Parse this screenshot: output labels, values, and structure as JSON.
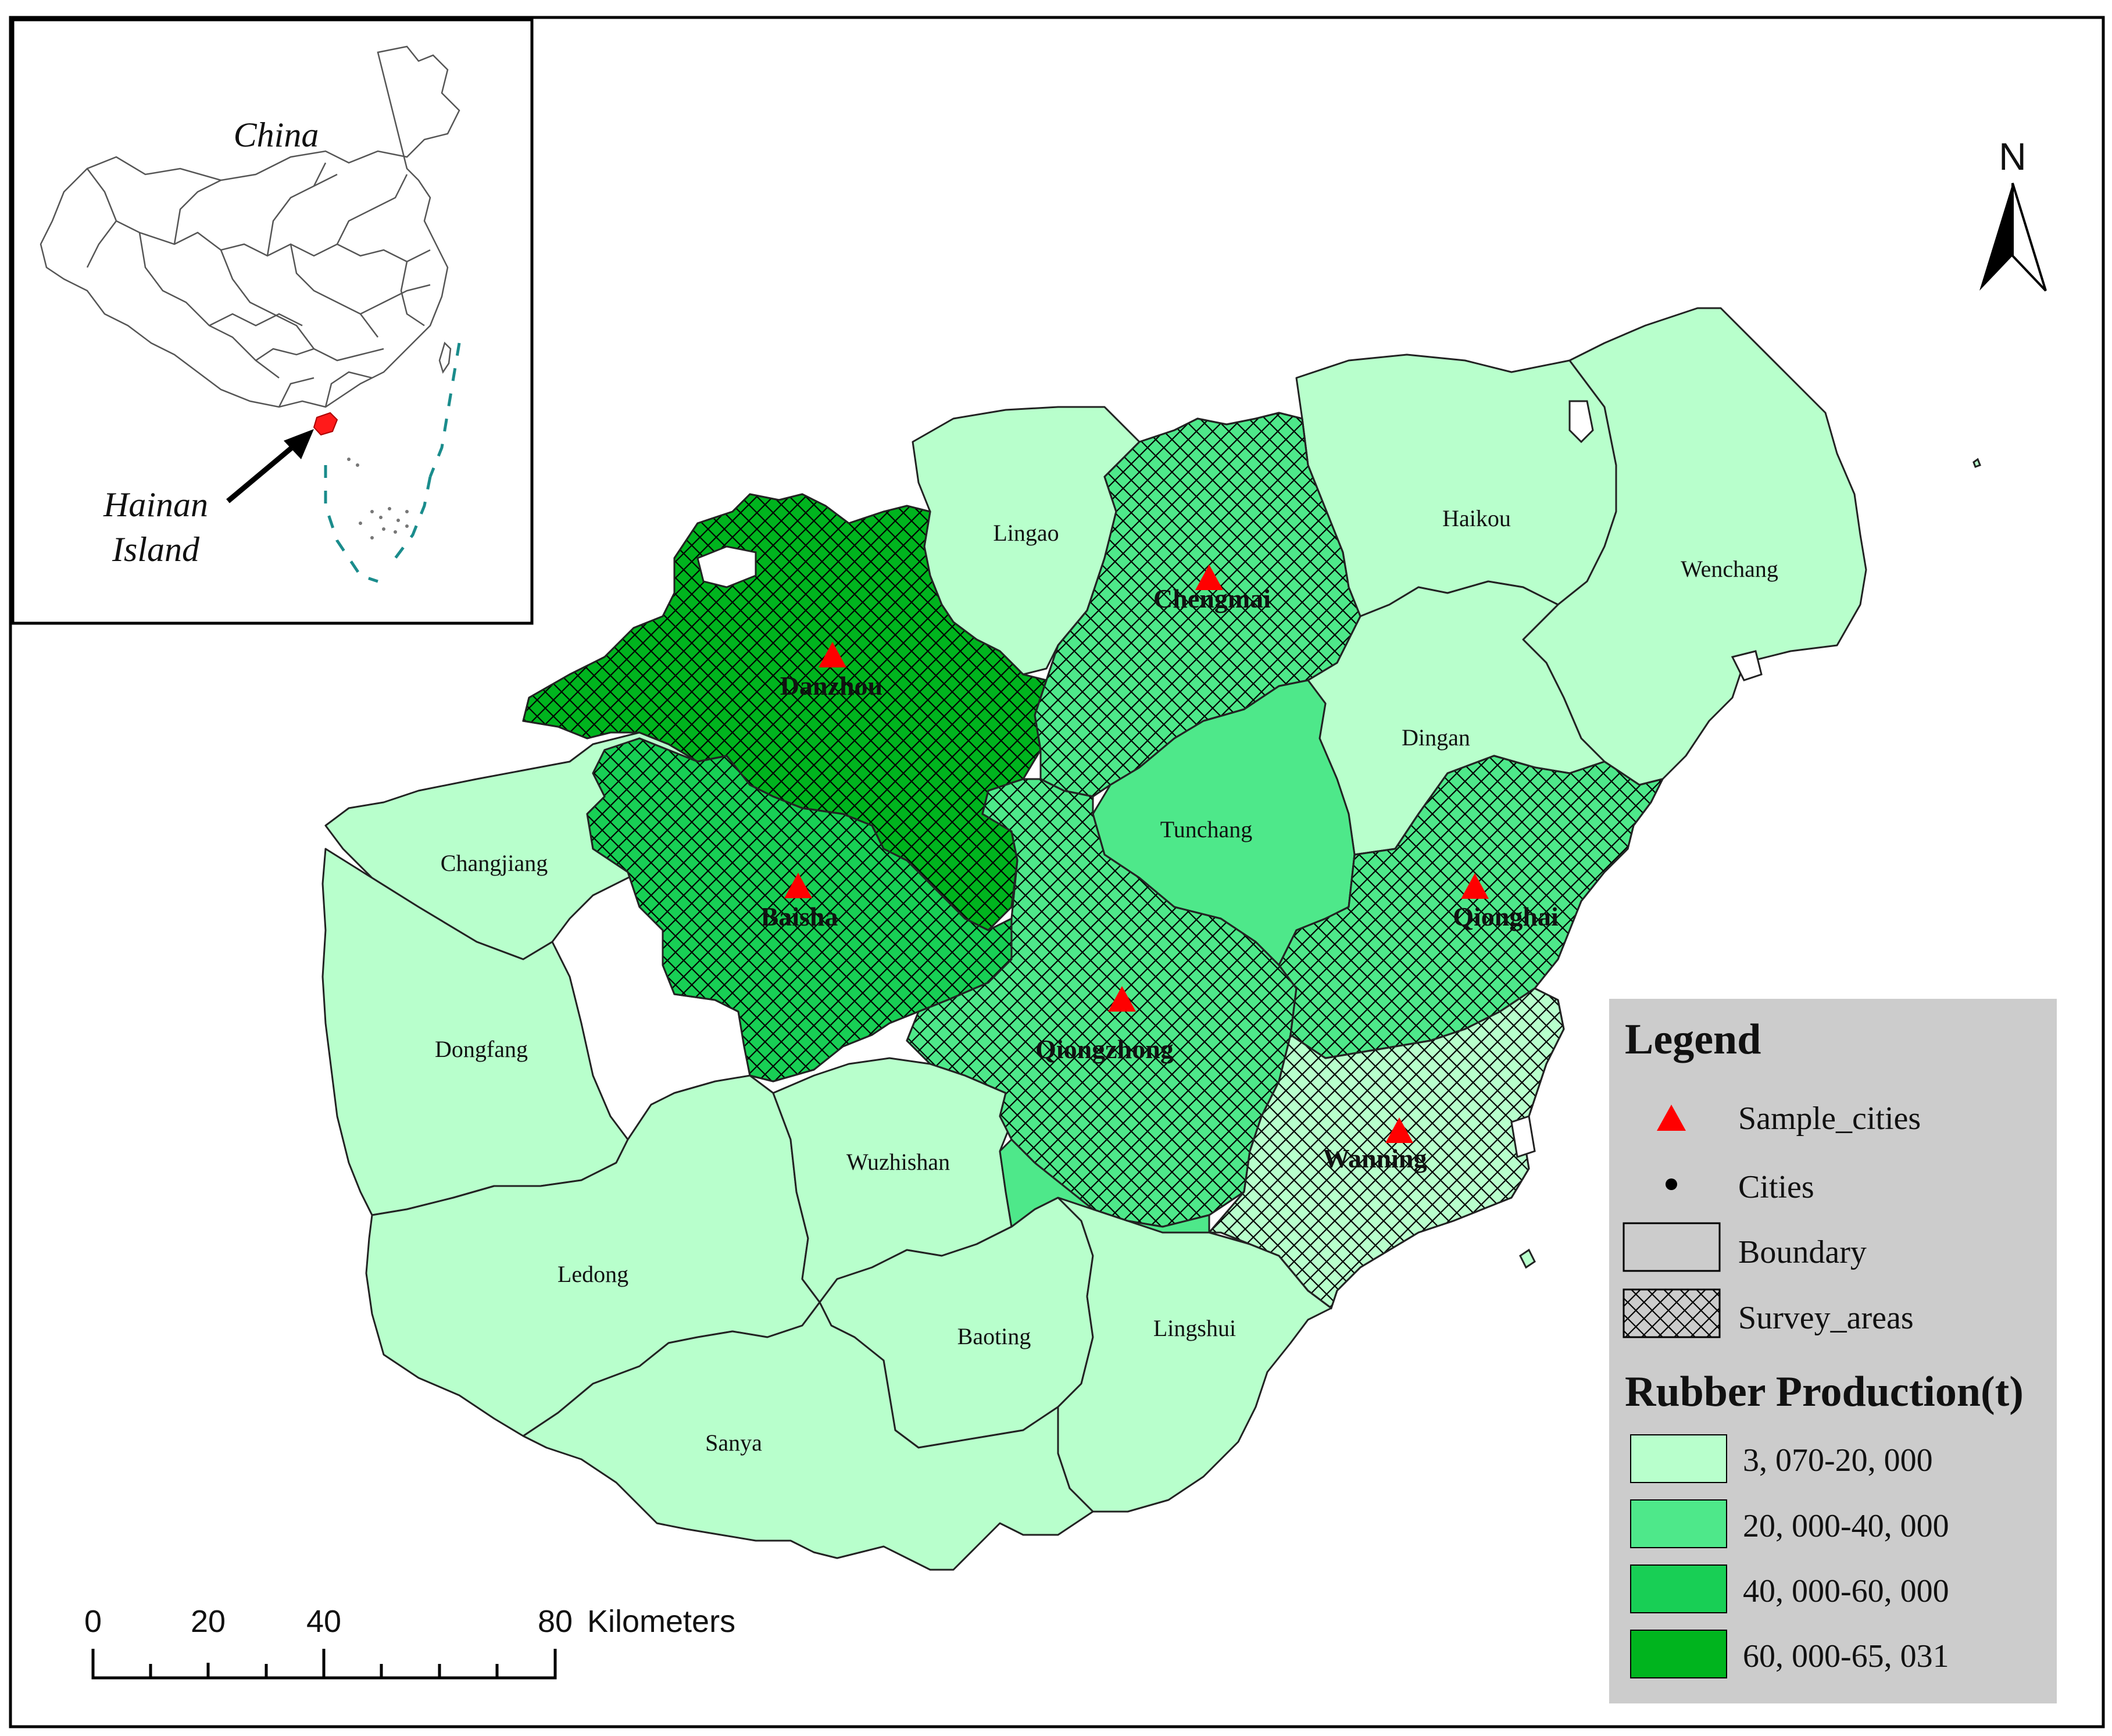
{
  "colors": {
    "class1": "#b8ffcc",
    "class2": "#4ee88a",
    "class3": "#18cf55",
    "class4": "#00b41e",
    "sample_marker": "#ff0000",
    "legend_bg": "#cccccc",
    "china_highlight": "#ff1a1a",
    "dashed_boundary": "#1a8c8c"
  },
  "inset": {
    "country_label": "China",
    "island_label_line1": "Hainan",
    "island_label_line2": "Island"
  },
  "north_arrow": {
    "label": "N"
  },
  "counties": [
    {
      "name": "Lingao",
      "class": 1,
      "survey": false,
      "sample": false
    },
    {
      "name": "Haikou",
      "class": 1,
      "survey": false,
      "sample": false
    },
    {
      "name": "Wenchang",
      "class": 1,
      "survey": false,
      "sample": false
    },
    {
      "name": "Dingan",
      "class": 1,
      "survey": false,
      "sample": false
    },
    {
      "name": "Tunchang",
      "class": 2,
      "survey": false,
      "sample": false
    },
    {
      "name": "Changjiang",
      "class": 1,
      "survey": false,
      "sample": false
    },
    {
      "name": "Dongfang",
      "class": 1,
      "survey": false,
      "sample": false
    },
    {
      "name": "Wuzhishan",
      "class": 1,
      "survey": false,
      "sample": false
    },
    {
      "name": "Ledong",
      "class": 1,
      "survey": false,
      "sample": false
    },
    {
      "name": "Baoting",
      "class": 1,
      "survey": false,
      "sample": false
    },
    {
      "name": "Lingshui",
      "class": 1,
      "survey": false,
      "sample": false
    },
    {
      "name": "Sanya",
      "class": 1,
      "survey": false,
      "sample": false
    },
    {
      "name": "Danzhou",
      "class": 4,
      "survey": true,
      "sample": true
    },
    {
      "name": "Chengmai",
      "class": 2,
      "survey": true,
      "sample": true
    },
    {
      "name": "Baisha",
      "class": 3,
      "survey": true,
      "sample": true
    },
    {
      "name": "Qionghai",
      "class": 2,
      "survey": true,
      "sample": true
    },
    {
      "name": "Qiongzhong",
      "class": 2,
      "survey": true,
      "sample": true
    },
    {
      "name": "Wanning",
      "class": 1,
      "survey": true,
      "sample": true
    }
  ],
  "legend": {
    "title": "Legend",
    "sample_cities": "Sample_cities",
    "cities": "Cities",
    "boundary": "Boundary",
    "survey_areas": "Survey_areas",
    "production_title": "Rubber Production(t)",
    "classes": [
      "3, 070-20, 000",
      "20, 000-40, 000",
      "40, 000-60, 000",
      "60, 000-65, 031"
    ]
  },
  "scale_bar": {
    "ticks": [
      "0",
      "20",
      "40",
      "80"
    ],
    "unit": "Kilometers"
  }
}
